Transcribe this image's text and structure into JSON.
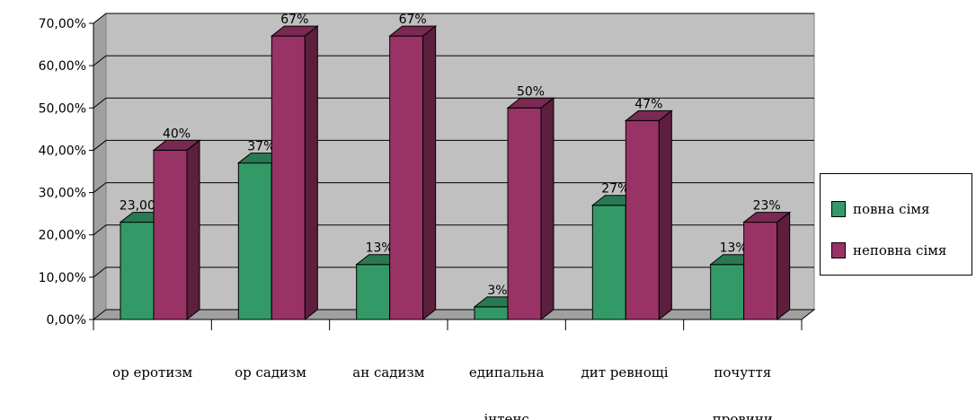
{
  "chart_data": {
    "type": "bar",
    "categories": [
      [
        "ор еротизм"
      ],
      [
        "ор садизм"
      ],
      [
        "ан садизм"
      ],
      [
        "едипальна",
        "інтенс"
      ],
      [
        "дит ревнощі"
      ],
      [
        "почуття",
        "провини"
      ]
    ],
    "series": [
      {
        "name": "повна сімя",
        "values": [
          0.23,
          0.37,
          0.13,
          0.03,
          0.27,
          0.13
        ],
        "labels": [
          "23,00%",
          "37%",
          "13%",
          "3%",
          "27%",
          "13%"
        ],
        "color": "#339966"
      },
      {
        "name": "неповна сімя",
        "values": [
          0.4,
          0.67,
          0.67,
          0.5,
          0.47,
          0.23
        ],
        "labels": [
          "40%",
          "67%",
          "67%",
          "50%",
          "47%",
          "23%"
        ],
        "color": "#993366"
      }
    ],
    "y_ticks": [
      "0,00%",
      "10,00%",
      "20,00%",
      "30,00%",
      "40,00%",
      "50,00%",
      "60,00%",
      "70,00%"
    ],
    "ylim": [
      0,
      0.7
    ],
    "grid": true,
    "legend": "right",
    "wall_color": "#c0c0c0"
  }
}
